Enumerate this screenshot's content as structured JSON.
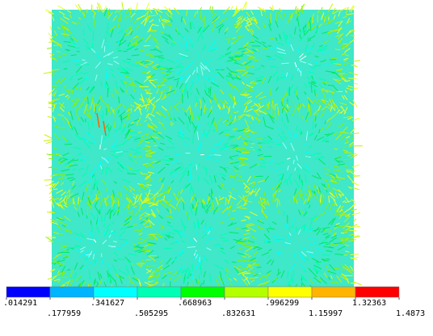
{
  "legend": {
    "colors": [
      "#0000ff",
      "#00b4ff",
      "#00ffff",
      "#00ffb4",
      "#00ff00",
      "#b4ff00",
      "#ffff00",
      "#ffb400",
      "#ff0000"
    ],
    "labels": [
      ".014291",
      ".177959",
      ".341627",
      ".505295",
      ".668963",
      ".832631",
      ".996299",
      "1.15997",
      "1.32363",
      "1.4873"
    ]
  }
}
